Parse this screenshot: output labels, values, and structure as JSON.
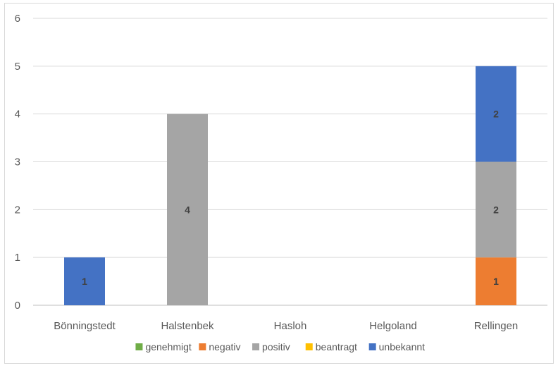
{
  "chart_data": {
    "type": "bar",
    "stacked": true,
    "categories": [
      "Bönningstedt",
      "Halstenbek",
      "Hasloh",
      "Helgoland",
      "Rellingen"
    ],
    "series": [
      {
        "name": "genehmigt",
        "color": "#70ad47",
        "values": [
          0,
          0,
          0,
          0,
          0
        ]
      },
      {
        "name": "negativ",
        "color": "#ed7d31",
        "values": [
          0,
          0,
          0,
          0,
          1
        ]
      },
      {
        "name": "positiv",
        "color": "#a5a5a5",
        "values": [
          0,
          4,
          0,
          0,
          2
        ]
      },
      {
        "name": "beantragt",
        "color": "#ffc000",
        "values": [
          0,
          0,
          0,
          0,
          0
        ]
      },
      {
        "name": "unbekannt",
        "color": "#4472c4",
        "values": [
          1,
          0,
          0,
          0,
          2
        ]
      }
    ],
    "ylim": [
      0,
      6
    ],
    "yticks": [
      "0",
      "1",
      "2",
      "3",
      "4",
      "5",
      "6"
    ],
    "grid": true,
    "legend_position": "bottom"
  }
}
